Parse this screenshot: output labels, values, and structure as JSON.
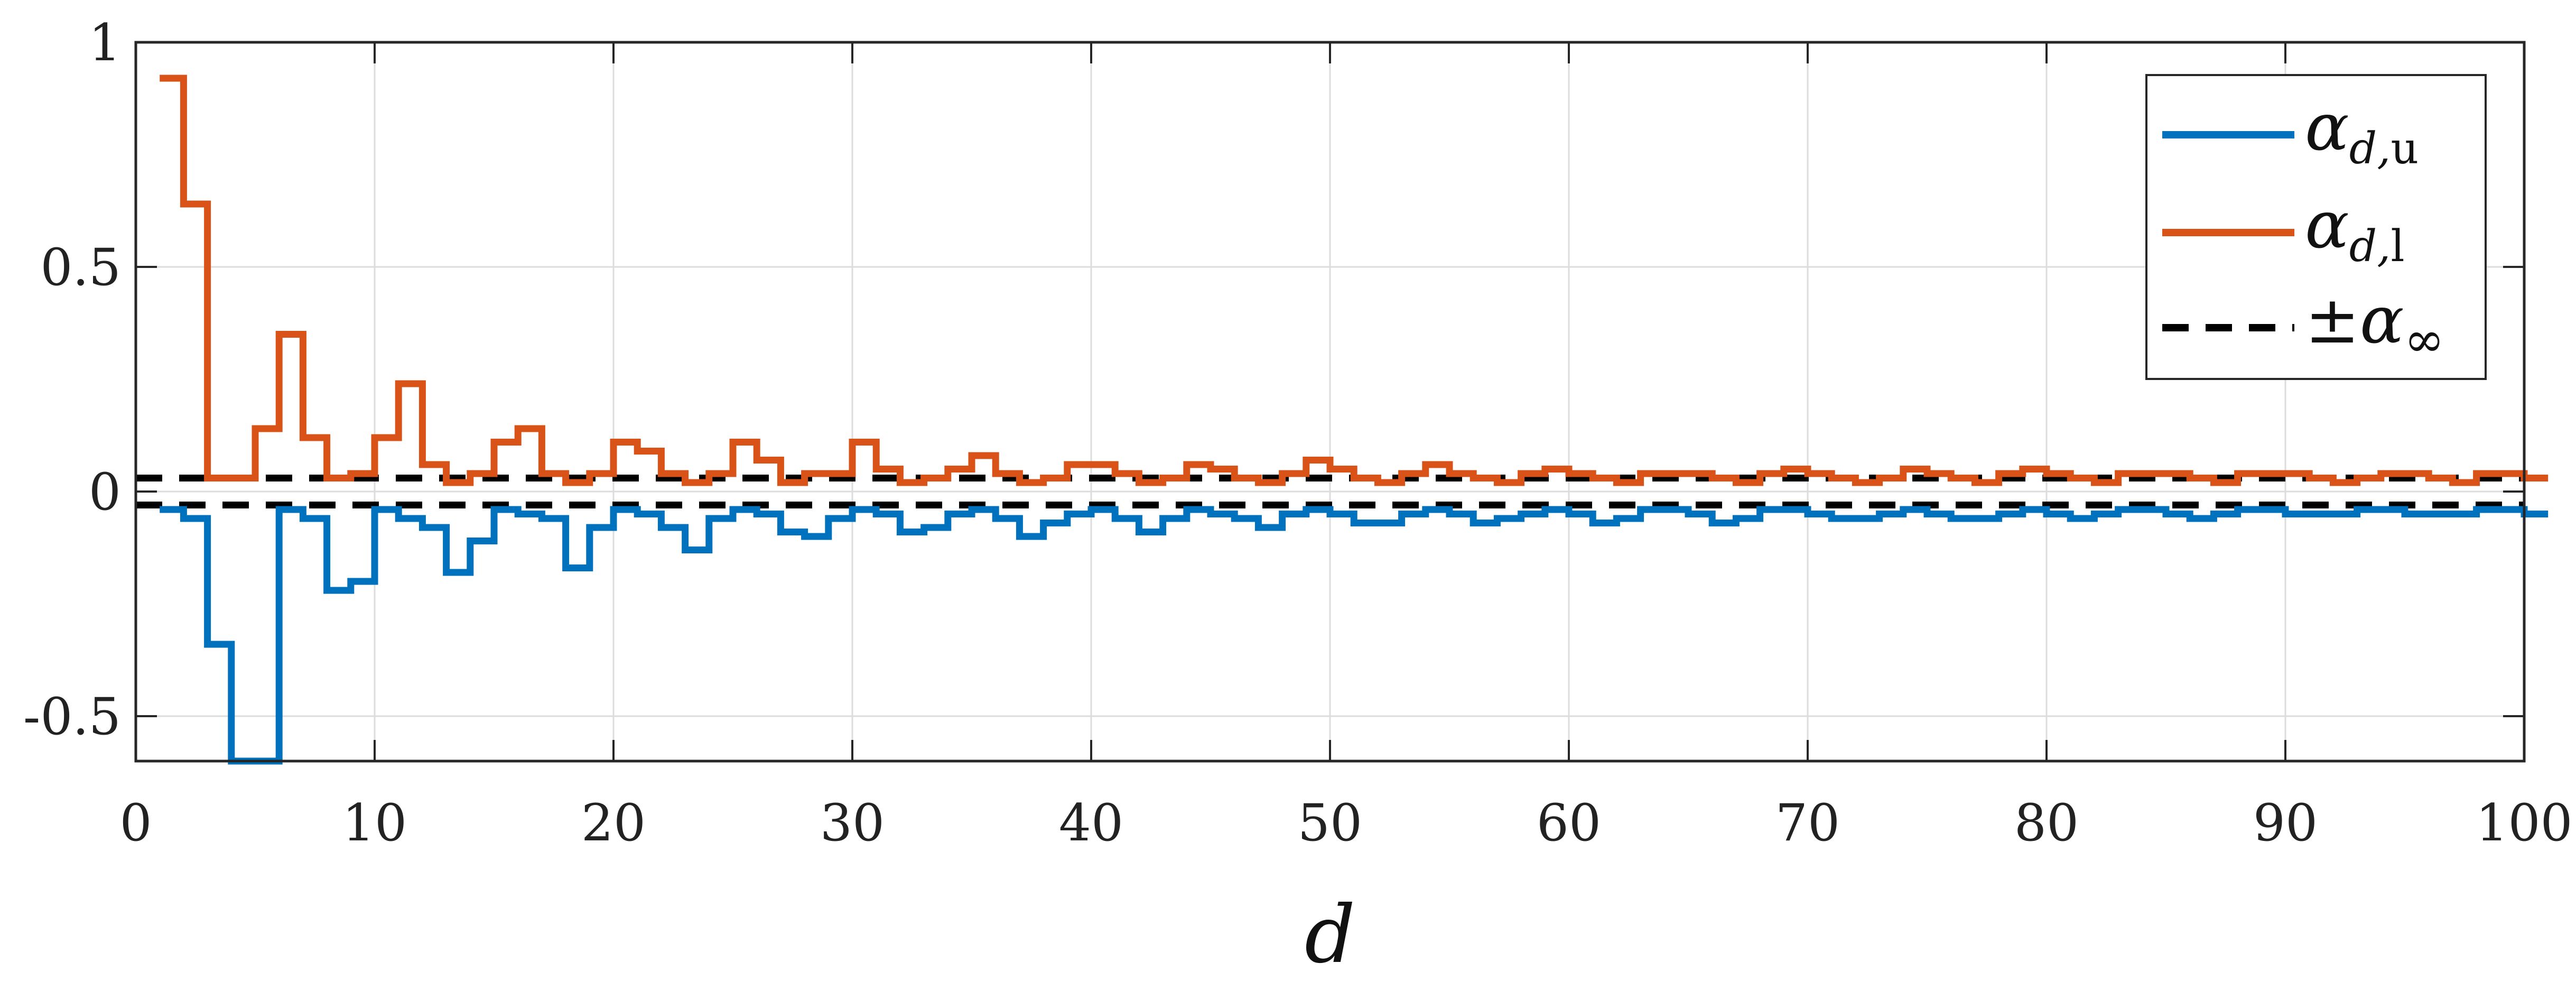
{
  "chart_data": {
    "type": "line",
    "step": true,
    "xlabel": "d",
    "ylabel": "",
    "xlim": [
      0,
      100
    ],
    "ylim": [
      -0.6,
      1
    ],
    "xticks": [
      0,
      10,
      20,
      30,
      40,
      50,
      60,
      70,
      80,
      90,
      100
    ],
    "xtick_labels": [
      "0",
      "10",
      "20",
      "30",
      "40",
      "50",
      "60",
      "70",
      "80",
      "90",
      "100"
    ],
    "yticks": [
      -0.5,
      0,
      0.5,
      1
    ],
    "ytick_labels": [
      "-0.5",
      "0",
      "0.5",
      "1"
    ],
    "grid": true,
    "legend_position": "top-right",
    "legend": {
      "u": {
        "symbol": "α",
        "sub": "d,",
        "sub2": "u"
      },
      "l": {
        "symbol": "α",
        "sub": "d,",
        "sub2": "l"
      },
      "inf": {
        "pm": "±",
        "symbol": "α",
        "sub": "∞"
      }
    },
    "reference_lines": {
      "value": 0.03,
      "color": "#000000",
      "dash": true
    },
    "series": [
      {
        "key": "l",
        "color": "#D95319",
        "start_x": 1,
        "values": [
          0.92,
          0.64,
          0.03,
          0.03,
          0.14,
          0.35,
          0.12,
          0.03,
          0.04,
          0.12,
          0.24,
          0.06,
          0.02,
          0.04,
          0.11,
          0.14,
          0.04,
          0.02,
          0.04,
          0.11,
          0.09,
          0.04,
          0.02,
          0.04,
          0.11,
          0.07,
          0.02,
          0.04,
          0.04,
          0.11,
          0.05,
          0.02,
          0.03,
          0.05,
          0.08,
          0.04,
          0.02,
          0.03,
          0.06,
          0.06,
          0.04,
          0.02,
          0.03,
          0.06,
          0.05,
          0.03,
          0.02,
          0.04,
          0.07,
          0.05,
          0.03,
          0.02,
          0.04,
          0.06,
          0.04,
          0.03,
          0.02,
          0.04,
          0.05,
          0.04,
          0.03,
          0.02,
          0.04,
          0.04,
          0.04,
          0.03,
          0.02,
          0.04,
          0.05,
          0.04,
          0.03,
          0.02,
          0.03,
          0.05,
          0.04,
          0.03,
          0.02,
          0.04,
          0.05,
          0.04,
          0.03,
          0.02,
          0.04,
          0.04,
          0.04,
          0.03,
          0.02,
          0.04,
          0.04,
          0.04,
          0.03,
          0.02,
          0.03,
          0.04,
          0.04,
          0.03,
          0.02,
          0.04,
          0.04,
          0.03
        ]
      },
      {
        "key": "u",
        "color": "#0072BD",
        "start_x": 1,
        "values": [
          -0.04,
          -0.06,
          -0.34,
          -0.6,
          -0.6,
          -0.04,
          -0.06,
          -0.22,
          -0.2,
          -0.04,
          -0.06,
          -0.08,
          -0.18,
          -0.11,
          -0.04,
          -0.05,
          -0.06,
          -0.17,
          -0.08,
          -0.04,
          -0.05,
          -0.08,
          -0.13,
          -0.06,
          -0.04,
          -0.05,
          -0.09,
          -0.1,
          -0.06,
          -0.04,
          -0.05,
          -0.09,
          -0.08,
          -0.05,
          -0.04,
          -0.06,
          -0.1,
          -0.07,
          -0.05,
          -0.04,
          -0.06,
          -0.09,
          -0.06,
          -0.04,
          -0.05,
          -0.06,
          -0.08,
          -0.05,
          -0.04,
          -0.05,
          -0.07,
          -0.07,
          -0.05,
          -0.04,
          -0.05,
          -0.07,
          -0.06,
          -0.05,
          -0.04,
          -0.05,
          -0.07,
          -0.06,
          -0.04,
          -0.04,
          -0.05,
          -0.07,
          -0.06,
          -0.04,
          -0.04,
          -0.05,
          -0.06,
          -0.06,
          -0.05,
          -0.04,
          -0.05,
          -0.06,
          -0.06,
          -0.05,
          -0.04,
          -0.05,
          -0.06,
          -0.05,
          -0.04,
          -0.04,
          -0.05,
          -0.06,
          -0.05,
          -0.04,
          -0.04,
          -0.05,
          -0.05,
          -0.05,
          -0.04,
          -0.04,
          -0.05,
          -0.05,
          -0.05,
          -0.04,
          -0.04,
          -0.05
        ]
      }
    ]
  }
}
